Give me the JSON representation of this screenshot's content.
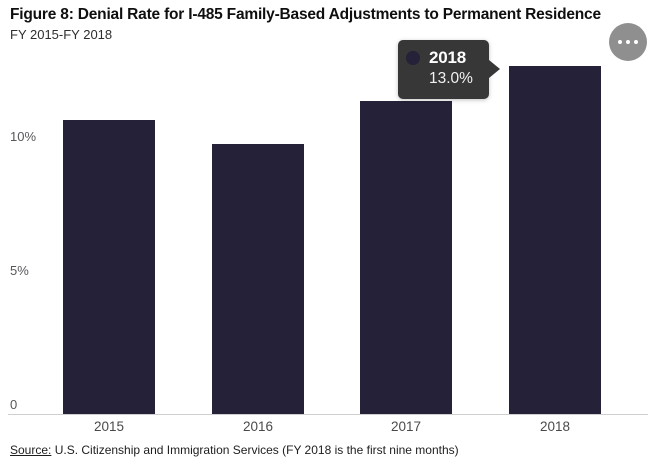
{
  "header": {
    "title": "Figure 8: Denial Rate for I-485 Family-Based Adjustments to Permanent Residence",
    "subtitle": "FY 2015-FY 2018"
  },
  "menu": {
    "icon": "ellipsis-more-options"
  },
  "chart_data": {
    "type": "bar",
    "title": "Denial Rate for I-485 Family-Based Adjustments to Permanent Residence",
    "categories": [
      "2015",
      "2016",
      "2017",
      "2018"
    ],
    "values": [
      11.0,
      10.1,
      11.7,
      13.0
    ],
    "unit": "%",
    "xlabel": "",
    "ylabel": "",
    "ylim": [
      0,
      13.5
    ],
    "yticks": [
      {
        "value": 0,
        "label": "0"
      },
      {
        "value": 5,
        "label": "5%"
      },
      {
        "value": 10,
        "label": "10%"
      }
    ],
    "grid": false,
    "legend": "none",
    "bar_color": "#242138",
    "axis_line_color": "#cfcfcf"
  },
  "tooltip": {
    "year": "2018",
    "value": "13.0%",
    "background": "#373737",
    "dot_color": "#242138"
  },
  "source": {
    "prefix": "Source:",
    "text": " U.S. Citizenship and Immigration Services (FY 2018 is the first nine months)"
  }
}
